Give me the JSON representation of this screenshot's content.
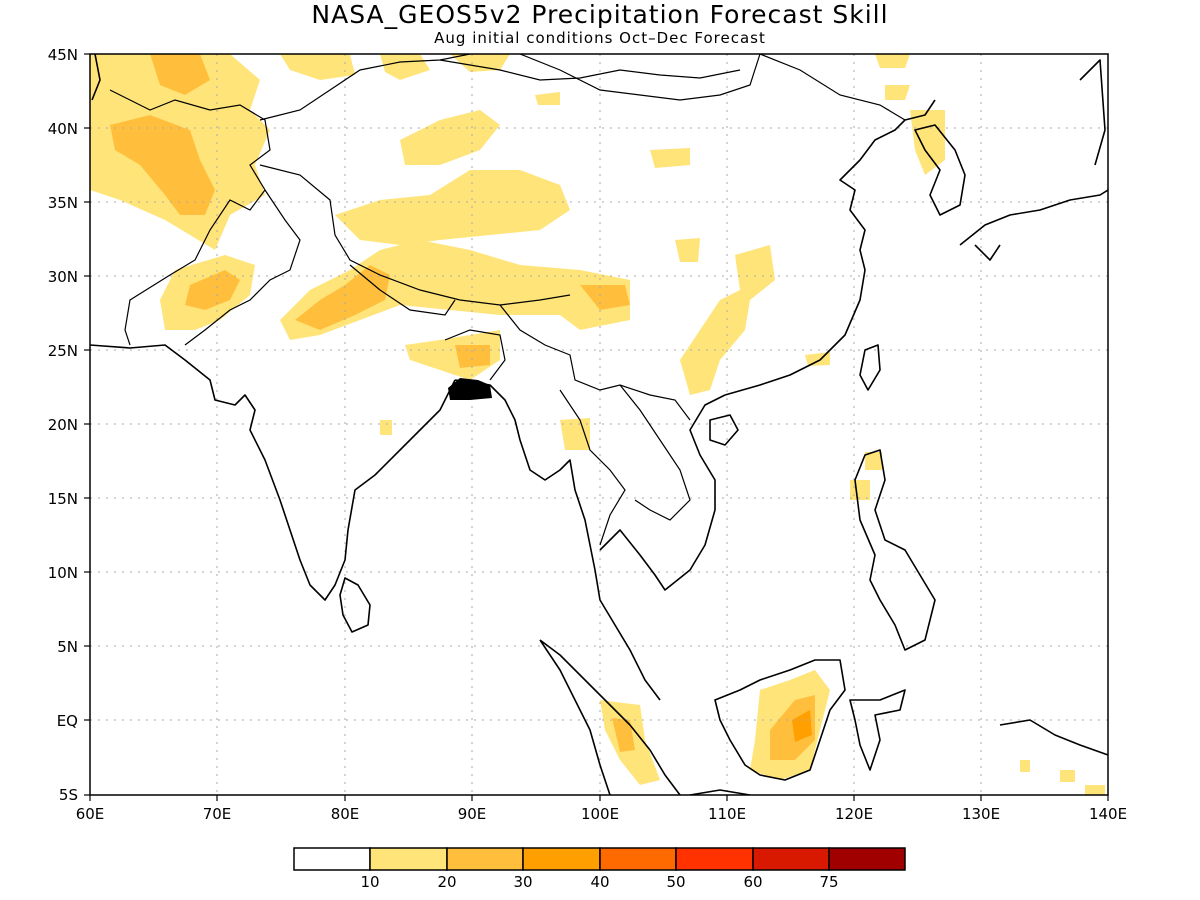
{
  "map": {
    "title": "NASA_GEOS5v2 Precipitation Forecast Skill",
    "subtitle": "Aug initial conditions  Oct–Dec Forecast",
    "lon_range": [
      60,
      140
    ],
    "lat_range": [
      -5,
      45
    ],
    "y_ticks": [
      "45N",
      "40N",
      "35N",
      "30N",
      "25N",
      "20N",
      "15N",
      "10N",
      "5N",
      "EQ",
      "5S"
    ],
    "x_ticks": [
      "60E",
      "70E",
      "80E",
      "90E",
      "100E",
      "110E",
      "120E",
      "130E",
      "140E"
    ],
    "gridlines": "dotted"
  },
  "colorbar": {
    "colors": [
      "#ffffff",
      "#ffe47a",
      "#ffbf3c",
      "#ff9f00",
      "#ff6a00",
      "#ff3200",
      "#d91800",
      "#a00000"
    ],
    "labels": [
      "10",
      "20",
      "30",
      "40",
      "50",
      "60",
      "75"
    ]
  }
}
